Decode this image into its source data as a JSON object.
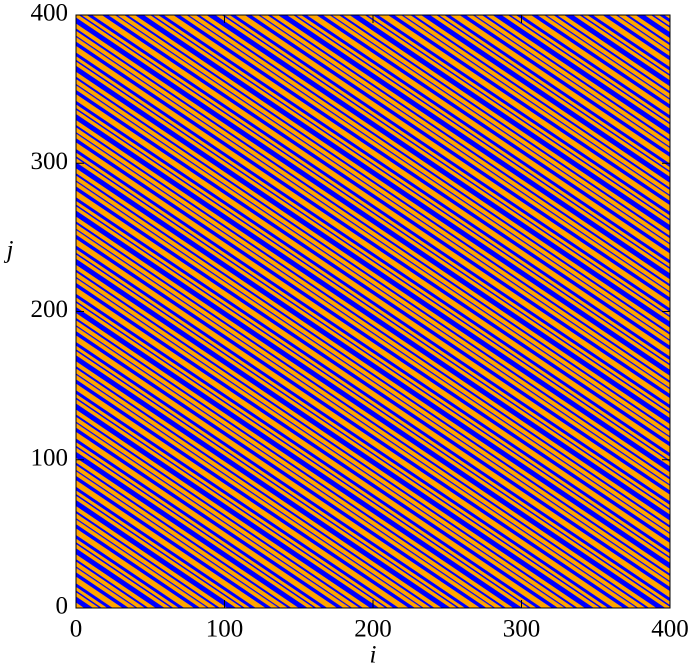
{
  "chart_data": {
    "type": "heatmap",
    "x_label": "i",
    "y_label": "j",
    "xlim": [
      0,
      400
    ],
    "ylim": [
      0,
      400
    ],
    "xticks": [
      0,
      100,
      200,
      300,
      400
    ],
    "yticks": [
      0,
      100,
      200,
      300,
      400
    ],
    "colors": [
      "#ffa500",
      "#0000ff"
    ]
  }
}
